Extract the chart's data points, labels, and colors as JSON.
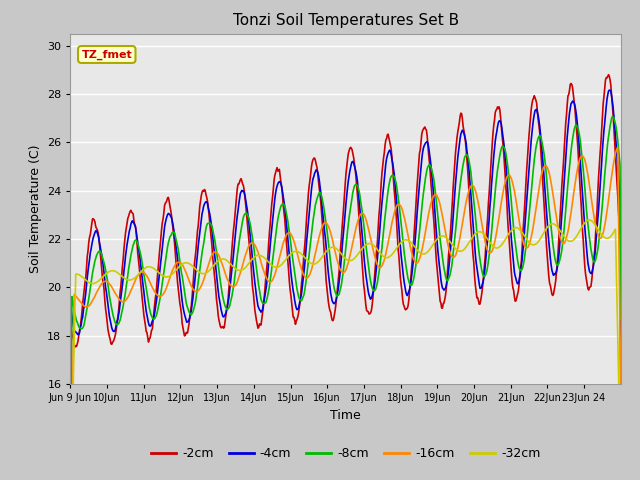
{
  "title": "Tonzi Soil Temperatures Set B",
  "xlabel": "Time",
  "ylabel": "Soil Temperature (C)",
  "ylim": [
    16,
    30.5
  ],
  "series": [
    {
      "label": "-2cm",
      "color": "#cc0000"
    },
    {
      "label": "-4cm",
      "color": "#0000dd"
    },
    {
      "label": "-8cm",
      "color": "#00bb00"
    },
    {
      "label": "-16cm",
      "color": "#ff8800"
    },
    {
      "label": "-32cm",
      "color": "#cccc00"
    }
  ],
  "tick_labels": [
    "Jun 9 Jun",
    "10Jun",
    "11Jun",
    "12Jun",
    "13Jun",
    "14Jun",
    "15Jun",
    "16Jun",
    "17Jun",
    "18Jun",
    "19Jun",
    "20Jun",
    "21Jun",
    "22Jun",
    "23Jun 24"
  ],
  "annotation_label": "TZ_fmet",
  "annotation_color": "#cc0000",
  "annotation_bg": "#ffffcc",
  "annotation_border": "#aaaa00",
  "fig_bg": "#c8c8c8",
  "plot_bg": "#e8e8e8",
  "grid_color": "#ffffff"
}
